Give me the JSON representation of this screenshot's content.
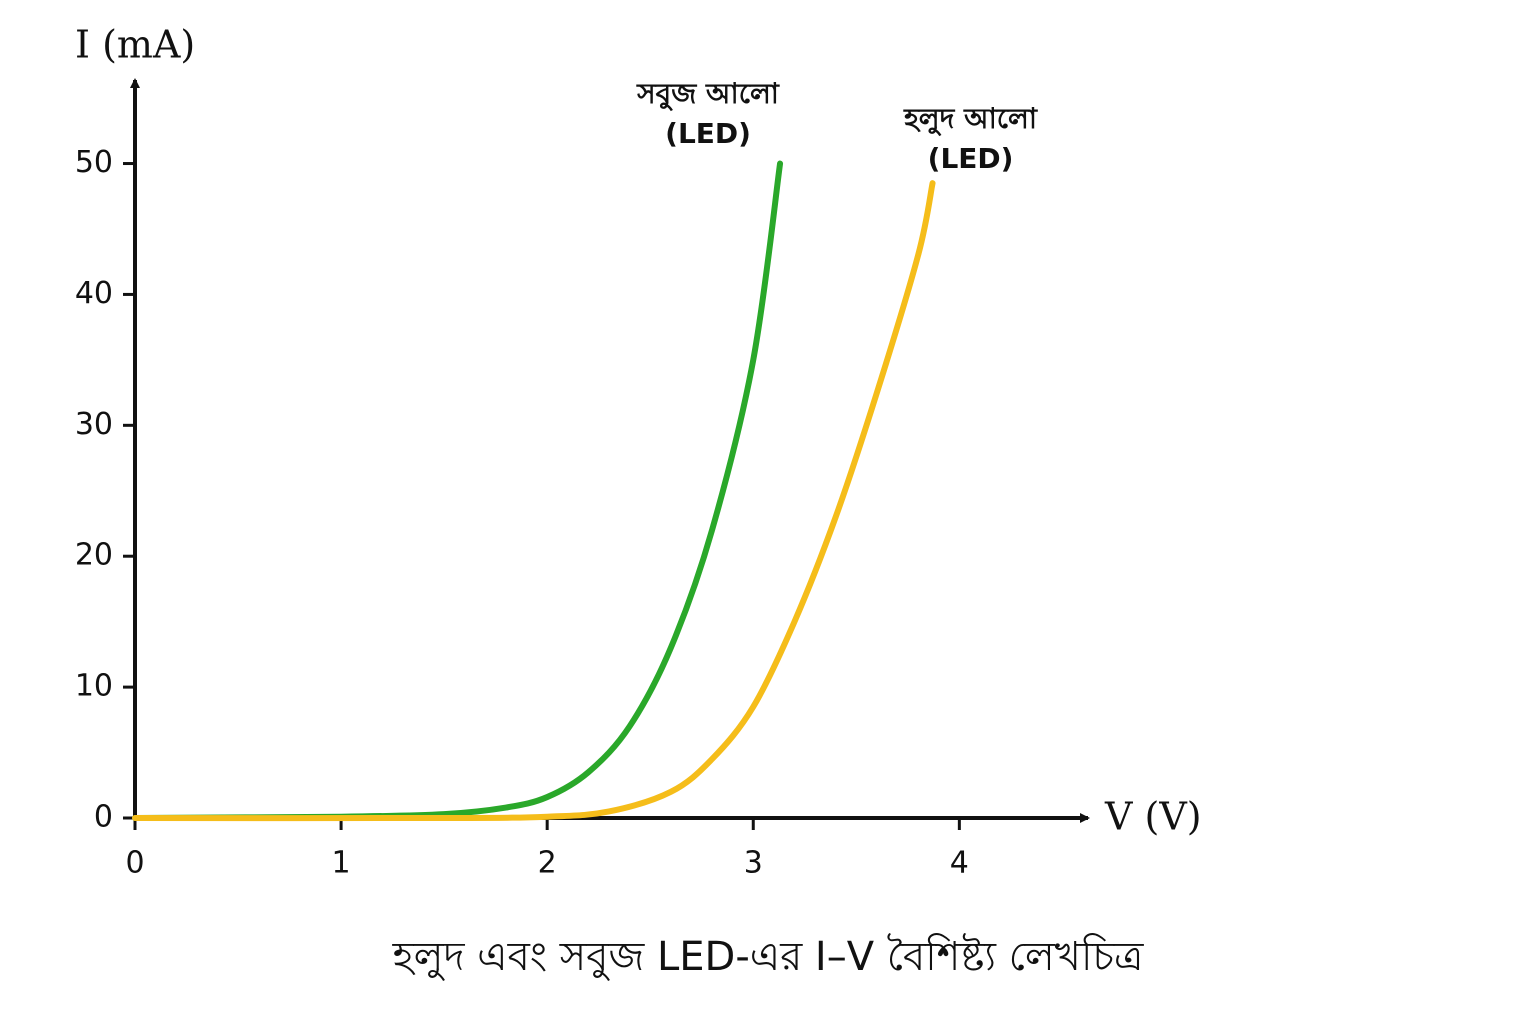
{
  "chart_data": {
    "type": "line",
    "title": "হলুদ এবং সবুজ LED-এর I–V বৈশিষ্ট্য লেখচিত্র",
    "x_label": "V (V)",
    "y_label": "I (mA)",
    "xlim": [
      0,
      4.6
    ],
    "ylim": [
      0,
      56
    ],
    "xticks": [
      0,
      1,
      2,
      3,
      4
    ],
    "yticks": [
      0,
      10,
      20,
      30,
      40,
      50
    ],
    "grid": false,
    "series": [
      {
        "name": "সবুজ আলো\n(LED)",
        "color": "#2aa82a",
        "x": [
          0,
          1,
          1.5,
          1.8,
          2.0,
          2.2,
          2.4,
          2.6,
          2.8,
          3.0,
          3.13
        ],
        "values": [
          0,
          0.1,
          0.3,
          0.8,
          1.6,
          3.5,
          7,
          13,
          22,
          35,
          50
        ]
      },
      {
        "name": "হলুদ আলো\n(LED)",
        "color": "#f5bd1a",
        "x": [
          0,
          1.5,
          2.0,
          2.3,
          2.6,
          2.8,
          3.0,
          3.2,
          3.4,
          3.6,
          3.8,
          3.87
        ],
        "values": [
          0,
          0,
          0.1,
          0.5,
          2,
          4.5,
          8.5,
          15,
          23,
          32.5,
          43,
          48.5
        ]
      }
    ]
  }
}
